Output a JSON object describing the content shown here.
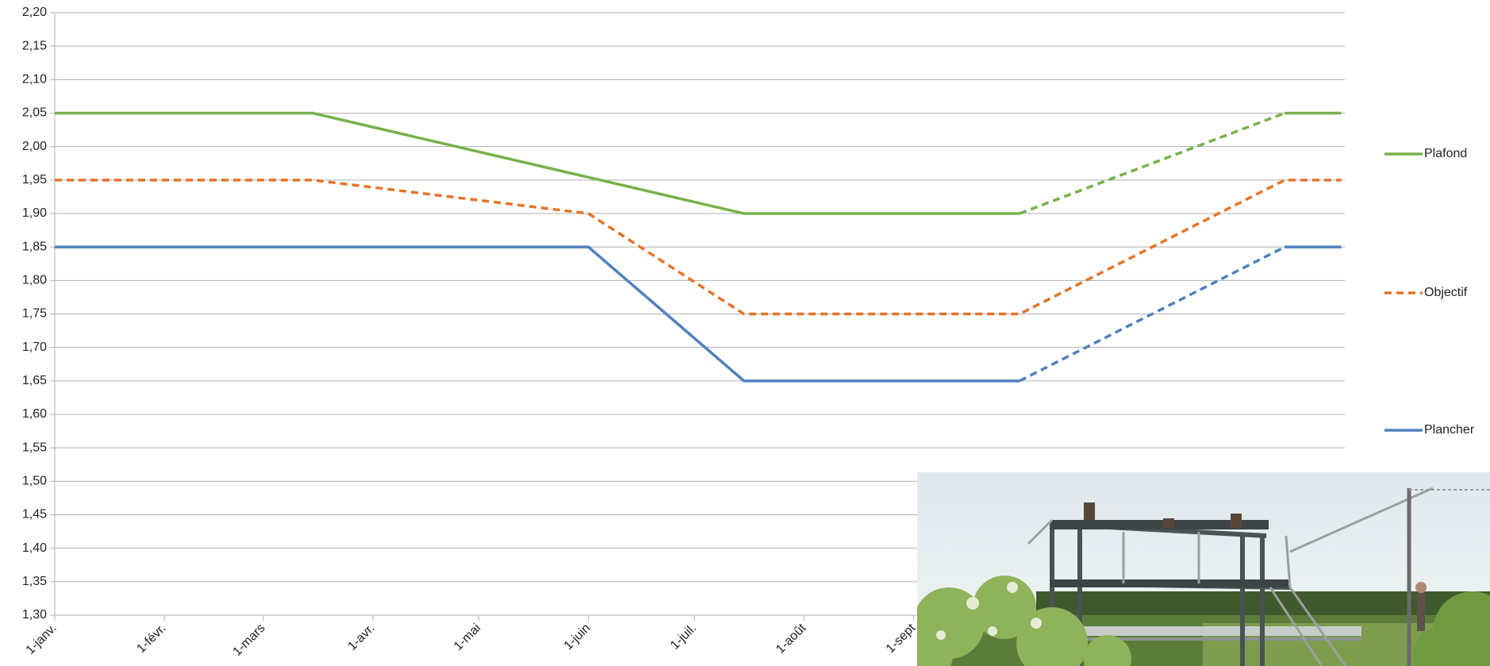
{
  "chart_data": {
    "type": "line",
    "xlim": [
      0,
      365
    ],
    "xticks": [
      {
        "value": 0,
        "label": "1-janv."
      },
      {
        "value": 31,
        "label": "1-févr."
      },
      {
        "value": 59,
        "label": "1-mars"
      },
      {
        "value": 90,
        "label": "1-avr."
      },
      {
        "value": 120,
        "label": "1-mai"
      },
      {
        "value": 151,
        "label": "1-juin"
      },
      {
        "value": 181,
        "label": "1-juil."
      },
      {
        "value": 212,
        "label": "1-août"
      },
      {
        "value": 243,
        "label": "1-sept"
      }
    ],
    "ylim": [
      1.3,
      2.2
    ],
    "yticks": [
      {
        "value": 1.3,
        "label": "1,30"
      },
      {
        "value": 1.35,
        "label": "1,35"
      },
      {
        "value": 1.4,
        "label": "1,40"
      },
      {
        "value": 1.45,
        "label": "1,45"
      },
      {
        "value": 1.5,
        "label": "1,50"
      },
      {
        "value": 1.55,
        "label": "1,55"
      },
      {
        "value": 1.6,
        "label": "1,60"
      },
      {
        "value": 1.65,
        "label": "1,65"
      },
      {
        "value": 1.7,
        "label": "1,70"
      },
      {
        "value": 1.75,
        "label": "1,75"
      },
      {
        "value": 1.8,
        "label": "1,80"
      },
      {
        "value": 1.85,
        "label": "1,85"
      },
      {
        "value": 1.9,
        "label": "1,90"
      },
      {
        "value": 1.95,
        "label": "1,95"
      },
      {
        "value": 2.0,
        "label": "2,00"
      },
      {
        "value": 2.05,
        "label": "2,05"
      },
      {
        "value": 2.1,
        "label": "2,10"
      },
      {
        "value": 2.15,
        "label": "2,15"
      },
      {
        "value": 2.2,
        "label": "2,20"
      }
    ],
    "grid": true,
    "legend": "right",
    "series": [
      {
        "name": "Plafond",
        "color": "#77b14a",
        "segments": [
          {
            "dashed": false,
            "x": [
              0,
              73,
              195,
              273
            ],
            "values": [
              2.05,
              2.05,
              1.9,
              1.9
            ]
          },
          {
            "dashed": true,
            "x": [
              273,
              348
            ],
            "values": [
              1.9,
              2.05
            ]
          },
          {
            "dashed": false,
            "x": [
              348,
              364
            ],
            "values": [
              2.05,
              2.05
            ]
          }
        ]
      },
      {
        "name": "Objectif",
        "color": "#e3742a",
        "segments": [
          {
            "dashed": true,
            "x": [
              0,
              73,
              151,
              195,
              273,
              348,
              364
            ],
            "values": [
              1.95,
              1.95,
              1.9,
              1.75,
              1.75,
              1.95,
              1.95
            ]
          }
        ]
      },
      {
        "name": "Plancher",
        "color": "#4f81bd",
        "segments": [
          {
            "dashed": false,
            "x": [
              0,
              151,
              195,
              273
            ],
            "values": [
              1.85,
              1.85,
              1.65,
              1.65
            ]
          },
          {
            "dashed": true,
            "x": [
              273,
              348
            ],
            "values": [
              1.65,
              1.85
            ]
          },
          {
            "dashed": false,
            "x": [
              348,
              364
            ],
            "values": [
              1.85,
              1.85
            ]
          }
        ]
      }
    ]
  }
}
